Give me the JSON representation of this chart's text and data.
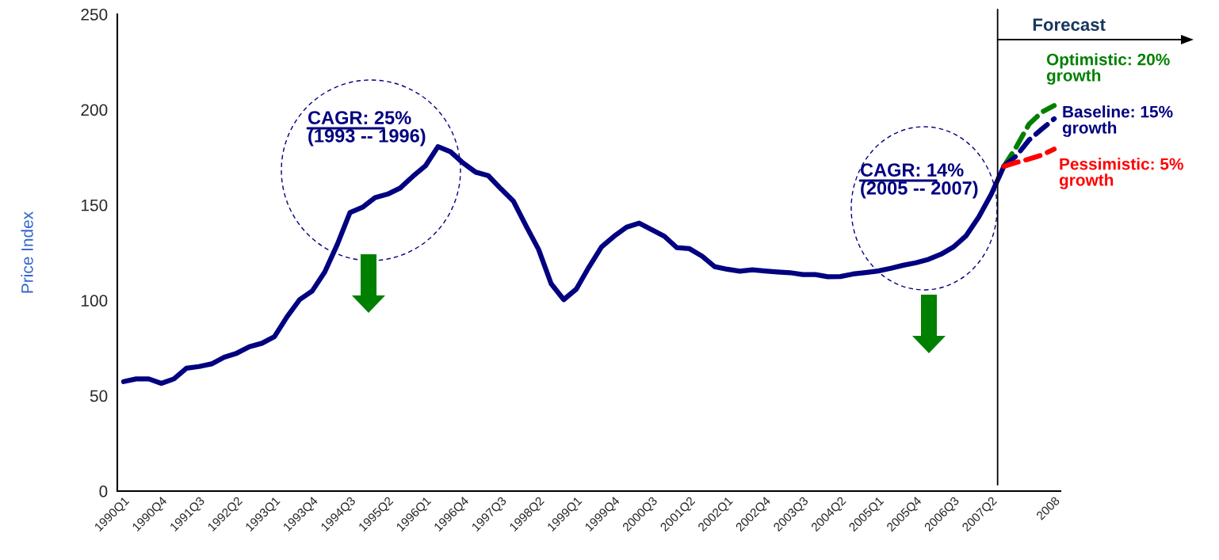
{
  "chart_data": {
    "type": "line",
    "ylabel": "Price Index",
    "categories": [
      "1990Q1",
      null,
      null,
      "1990Q4",
      null,
      null,
      "1991Q3",
      null,
      null,
      "1992Q2",
      null,
      null,
      "1993Q1",
      null,
      null,
      "1993Q4",
      null,
      null,
      "1994Q3",
      null,
      null,
      "1995Q2",
      null,
      null,
      "1996Q1",
      null,
      null,
      "1996Q4",
      null,
      null,
      "1997Q3",
      null,
      null,
      "1998Q2",
      null,
      null,
      "1999Q1",
      null,
      null,
      "1999Q4",
      null,
      null,
      "2000Q3",
      null,
      null,
      "2001Q2",
      null,
      null,
      "2002Q1",
      null,
      null,
      "2002Q4",
      null,
      null,
      "2003Q3",
      null,
      null,
      "2004Q2",
      null,
      null,
      "2005Q1",
      null,
      null,
      "2005Q4",
      null,
      null,
      "2006Q3",
      null,
      null,
      "2007Q2",
      null,
      null,
      null,
      null,
      "2008"
    ],
    "series": [
      {
        "color": "#000080",
        "line_style": "solid",
        "values": [
          57.4,
          58.8,
          58.8,
          56.5,
          58.8,
          64.4,
          65.3,
          66.7,
          70.2,
          72.3,
          75.7,
          77.5,
          81,
          91.4,
          100.4,
          104.9,
          114.9,
          129.4,
          146,
          148.8,
          153.9,
          155.7,
          158.9,
          165,
          170.5,
          180.6,
          177.9,
          172,
          167.2,
          165.4,
          158.5,
          152,
          139.1,
          126.7,
          108.7,
          100.4,
          105.9,
          117.4,
          128,
          133.6,
          138.4,
          140.5,
          137,
          133.6,
          127.6,
          127.1,
          123.2,
          117.7,
          116.3,
          115.3,
          116,
          115.4,
          114.9,
          114.5,
          113.5,
          113.5,
          112.4,
          112.5,
          113.8,
          114.6,
          115.4,
          116.8,
          118.4,
          119.7,
          121.5,
          124.2,
          128,
          133.9,
          143.7,
          155.7,
          170.3,
          null,
          null,
          null,
          null
        ]
      },
      {
        "name": "Optimistic: 20% growth",
        "color": "#008000",
        "line_style": "dashed",
        "values": [
          null,
          null,
          null,
          null,
          null,
          null,
          null,
          null,
          null,
          null,
          null,
          null,
          null,
          null,
          null,
          null,
          null,
          null,
          null,
          null,
          null,
          null,
          null,
          null,
          null,
          null,
          null,
          null,
          null,
          null,
          null,
          null,
          null,
          null,
          null,
          null,
          null,
          null,
          null,
          null,
          null,
          null,
          null,
          null,
          null,
          null,
          null,
          null,
          null,
          null,
          null,
          null,
          null,
          null,
          null,
          null,
          null,
          null,
          null,
          null,
          null,
          null,
          null,
          null,
          null,
          null,
          null,
          null,
          null,
          null,
          170.3,
          180.6,
          192.4,
          198.6,
          202.1
        ]
      },
      {
        "name": "Baseline: 15% growth",
        "color": "#000080",
        "line_style": "dashed",
        "values": [
          null,
          null,
          null,
          null,
          null,
          null,
          null,
          null,
          null,
          null,
          null,
          null,
          null,
          null,
          null,
          null,
          null,
          null,
          null,
          null,
          null,
          null,
          null,
          null,
          null,
          null,
          null,
          null,
          null,
          null,
          null,
          null,
          null,
          null,
          null,
          null,
          null,
          null,
          null,
          null,
          null,
          null,
          null,
          null,
          null,
          null,
          null,
          null,
          null,
          null,
          null,
          null,
          null,
          null,
          null,
          null,
          null,
          null,
          null,
          null,
          null,
          null,
          null,
          null,
          null,
          null,
          null,
          null,
          null,
          null,
          170.3,
          175.8,
          184.1,
          189.7,
          195.2
        ]
      },
      {
        "name": "Pessimistic: 5% growth",
        "color": "#ff0000",
        "line_style": "dashed",
        "values": [
          null,
          null,
          null,
          null,
          null,
          null,
          null,
          null,
          null,
          null,
          null,
          null,
          null,
          null,
          null,
          null,
          null,
          null,
          null,
          null,
          null,
          null,
          null,
          null,
          null,
          null,
          null,
          null,
          null,
          null,
          null,
          null,
          null,
          null,
          null,
          null,
          null,
          null,
          null,
          null,
          null,
          null,
          null,
          null,
          null,
          null,
          null,
          null,
          null,
          null,
          null,
          null,
          null,
          null,
          null,
          null,
          null,
          null,
          null,
          null,
          null,
          null,
          null,
          null,
          null,
          null,
          null,
          null,
          null,
          null,
          170.3,
          172.3,
          174.1,
          176.1,
          179.3
        ]
      }
    ],
    "ylim": [
      0,
      250
    ],
    "yticks": [
      0,
      50,
      100,
      150,
      200,
      250
    ],
    "annotations": [
      "CAGR: 25%\n(1993 -- 1996)",
      "CAGR: 14%\n(2005 -- 2007)",
      "Forecast"
    ]
  }
}
